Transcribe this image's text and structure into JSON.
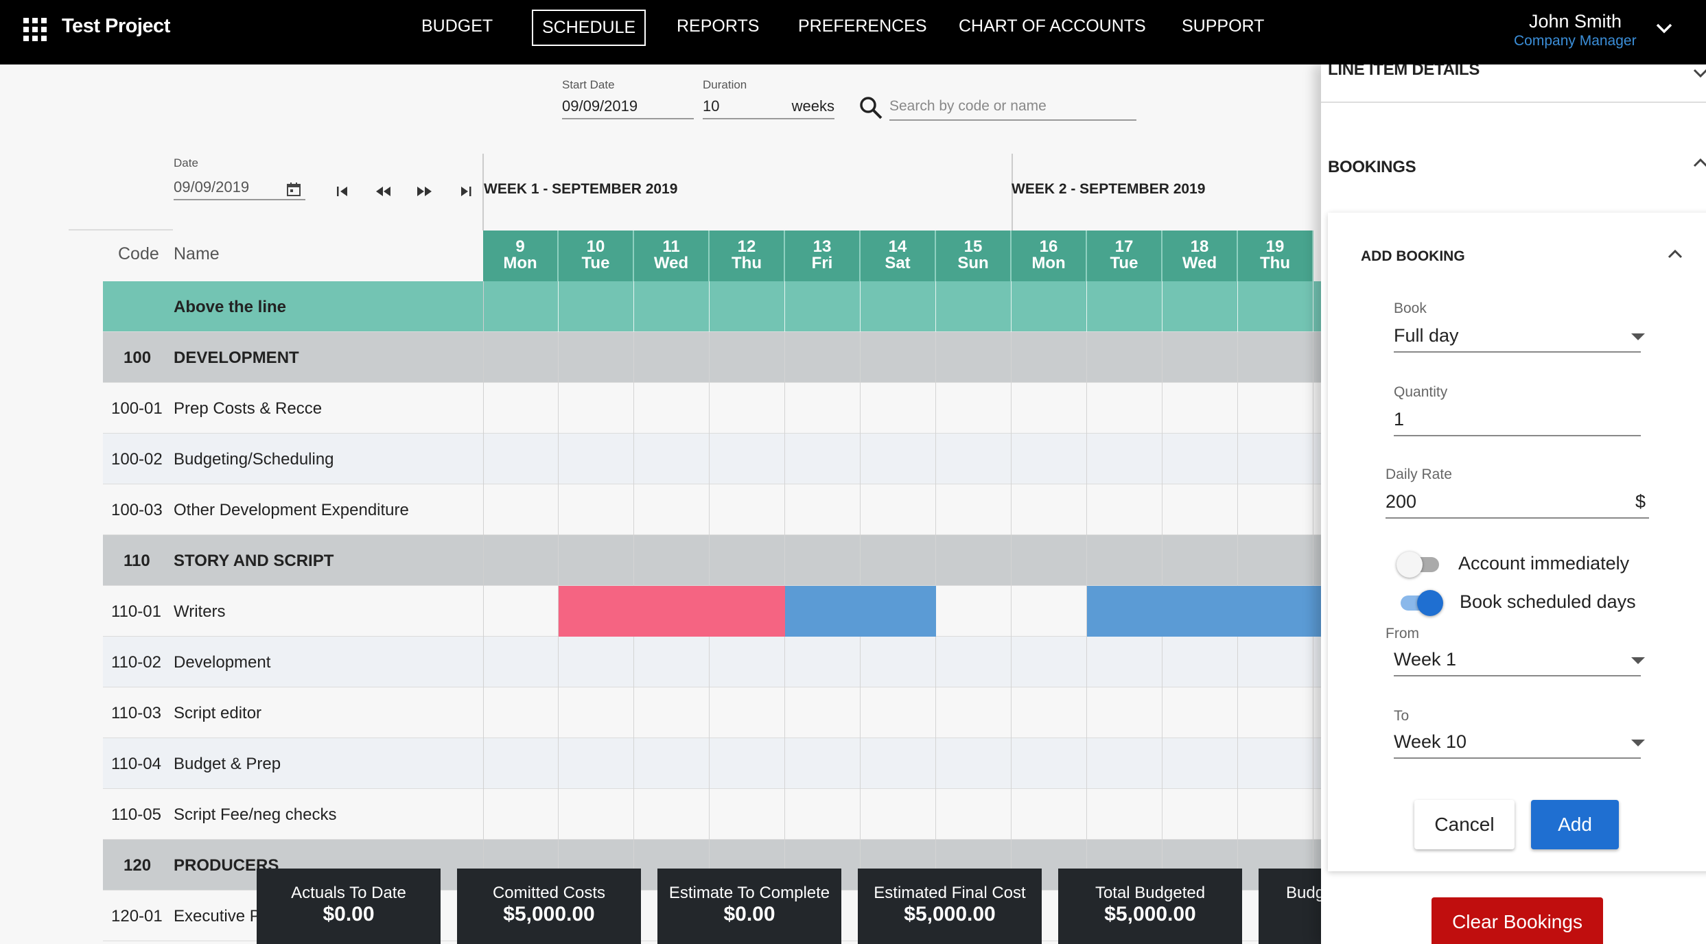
{
  "app": {
    "title": "Test Project",
    "apps_icon": "apps-grid-icon"
  },
  "nav": {
    "items": [
      {
        "label": "BUDGET",
        "active": false
      },
      {
        "label": "SCHEDULE",
        "active": true
      },
      {
        "label": "REPORTS",
        "active": false
      },
      {
        "label": "PREFERENCES",
        "active": false
      },
      {
        "label": "CHART OF ACCOUNTS",
        "active": false
      },
      {
        "label": "SUPPORT",
        "active": false
      }
    ]
  },
  "user": {
    "name": "John Smith",
    "role": "Company Manager"
  },
  "controls": {
    "start_date_label": "Start Date",
    "start_date": "09/09/2019",
    "duration_label": "Duration",
    "duration": "10",
    "duration_unit": "weeks",
    "search_placeholder": "Search by code or name",
    "date_label": "Date",
    "date": "09/09/2019"
  },
  "weeks": [
    "WEEK 1 - SEPTEMBER 2019",
    "WEEK 2 - SEPTEMBER 2019"
  ],
  "grid": {
    "code_header": "Code",
    "name_header": "Name",
    "days": [
      {
        "num": "9",
        "dow": "Mon"
      },
      {
        "num": "10",
        "dow": "Tue"
      },
      {
        "num": "11",
        "dow": "Wed"
      },
      {
        "num": "12",
        "dow": "Thu"
      },
      {
        "num": "13",
        "dow": "Fri"
      },
      {
        "num": "14",
        "dow": "Sat"
      },
      {
        "num": "15",
        "dow": "Sun"
      },
      {
        "num": "16",
        "dow": "Mon"
      },
      {
        "num": "17",
        "dow": "Tue"
      },
      {
        "num": "18",
        "dow": "Wed"
      },
      {
        "num": "19",
        "dow": "Thu"
      }
    ],
    "rows": [
      {
        "code": "",
        "name": "Above the line",
        "type": "above"
      },
      {
        "code": "100",
        "name": "DEVELOPMENT",
        "type": "section"
      },
      {
        "code": "100-01",
        "name": "Prep Costs & Recce",
        "type": "plain"
      },
      {
        "code": "100-02",
        "name": "Budgeting/Scheduling",
        "type": "alt"
      },
      {
        "code": "100-03",
        "name": "Other Development Expenditure",
        "type": "plain"
      },
      {
        "code": "110",
        "name": "STORY AND SCRIPT",
        "type": "section"
      },
      {
        "code": "110-01",
        "name": "Writers",
        "type": "plain"
      },
      {
        "code": "110-02",
        "name": "Development",
        "type": "alt"
      },
      {
        "code": "110-03",
        "name": "Script editor",
        "type": "plain"
      },
      {
        "code": "110-04",
        "name": "Budget & Prep",
        "type": "alt"
      },
      {
        "code": "110-05",
        "name": "Script Fee/neg checks",
        "type": "plain"
      },
      {
        "code": "120",
        "name": "PRODUCERS",
        "type": "section"
      },
      {
        "code": "120-01",
        "name": "Executive Producer",
        "type": "plain"
      }
    ],
    "bookings": [
      {
        "row": 6,
        "start_day": 1,
        "days": 3,
        "color": "#f56482"
      },
      {
        "row": 6,
        "start_day": 4,
        "days": 2,
        "color": "#5b9bd5"
      },
      {
        "row": 6,
        "start_day": 8,
        "days": 4,
        "color": "#5b9bd5"
      }
    ]
  },
  "summary": [
    {
      "label": "Actuals To Date",
      "value": "$0.00"
    },
    {
      "label": "Comitted Costs",
      "value": "$5,000.00"
    },
    {
      "label": "Estimate To Complete",
      "value": "$0.00"
    },
    {
      "label": "Estimated Final Cost",
      "value": "$5,000.00"
    },
    {
      "label": "Total Budgeted",
      "value": "$5,000.00"
    },
    {
      "label": "Budg",
      "value": ""
    }
  ],
  "panel": {
    "line_item_details": "LINE ITEM DETAILS",
    "bookings": "BOOKINGS",
    "add_booking": "ADD BOOKING",
    "book_label": "Book",
    "book_value": "Full day",
    "quantity_label": "Quantity",
    "quantity_value": "1",
    "daily_rate_label": "Daily Rate",
    "daily_rate_value": "200",
    "currency": "$",
    "account_immediately": {
      "label": "Account immediately",
      "on": false
    },
    "book_scheduled_days": {
      "label": "Book scheduled days",
      "on": true
    },
    "from_label": "From",
    "from_value": "Week 1",
    "to_label": "To",
    "to_value": "Week 10",
    "cancel": "Cancel",
    "add": "Add",
    "clear_bookings": "Clear Bookings"
  },
  "colors": {
    "header_teal": "#48a48e",
    "above_line": "#73c4b3",
    "section": "#c9ccce",
    "accent_blue": "#1f6fd1",
    "danger": "#c00e0e"
  }
}
